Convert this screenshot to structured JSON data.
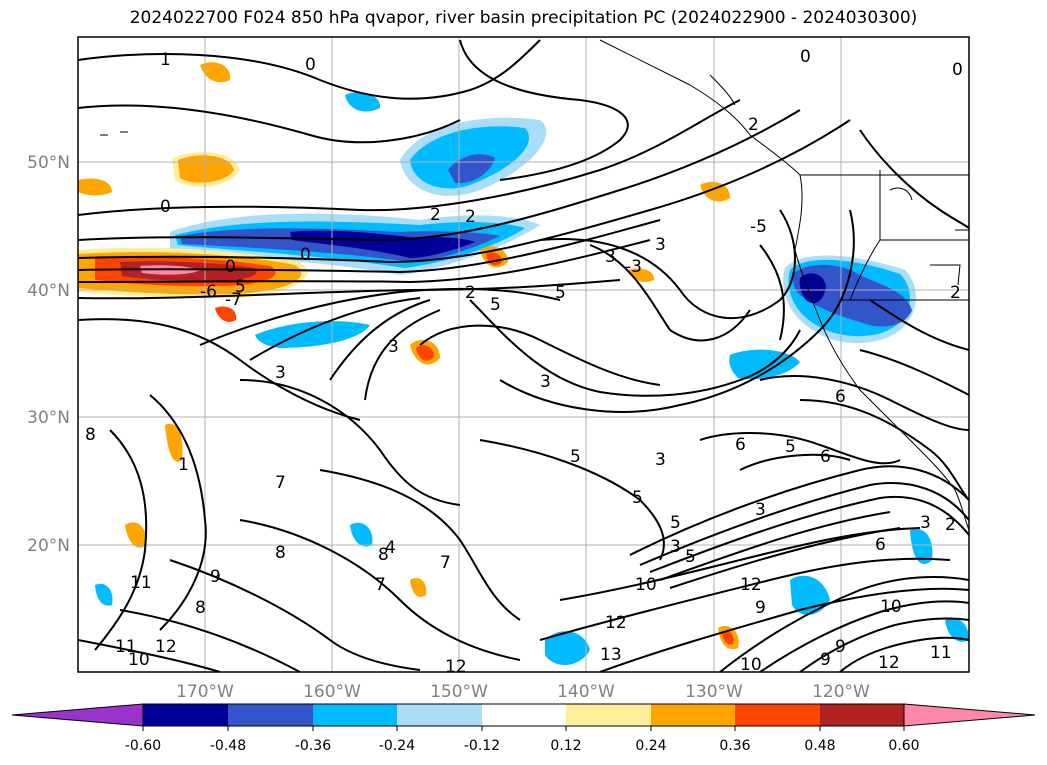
{
  "title": "2024022700 F024 850 hPa qvapor, river basin precipitation PC (2024022900 - 2024030300)",
  "map": {
    "lon_labels": [
      "170°W",
      "160°W",
      "150°W",
      "140°W",
      "130°W",
      "120°W"
    ],
    "lat_labels": [
      "50°N",
      "40°N",
      "30°N",
      "20°N"
    ],
    "contour_labels": [
      "1",
      "0",
      "0",
      "2",
      "0",
      "0",
      "2",
      "0",
      "-6",
      "5",
      "-7",
      "0",
      "2",
      "5",
      "3",
      "-3",
      "5",
      "3",
      "-5",
      "3",
      "2",
      "3",
      "3",
      "8",
      "3",
      "5",
      "3",
      "5",
      "7",
      "5",
      "5",
      "6",
      "6",
      "8",
      "8",
      "5",
      "3",
      "4",
      "9",
      "7",
      "1",
      "7",
      "8",
      "11",
      "10",
      "12",
      "12",
      "11",
      "10",
      "12",
      "9",
      "12",
      "13",
      "10",
      "9",
      "12",
      "11",
      "2",
      "3",
      "6",
      "6",
      "9",
      "10",
      "2"
    ],
    "colors": {
      "land": "#000000",
      "contour": "#000000",
      "grid": "#b0b0b0"
    }
  },
  "colorbar": {
    "tick_labels": [
      "-0.60",
      "-0.48",
      "-0.36",
      "-0.24",
      "-0.12",
      "0.12",
      "0.24",
      "0.36",
      "0.48",
      "0.60"
    ],
    "colors": [
      "#9933cc",
      "#000099",
      "#3355cc",
      "#00bbff",
      "#aaddf8",
      "#ffffff",
      "#ffee99",
      "#ffa500",
      "#ff4400",
      "#b22222",
      "#ff88aa"
    ]
  }
}
